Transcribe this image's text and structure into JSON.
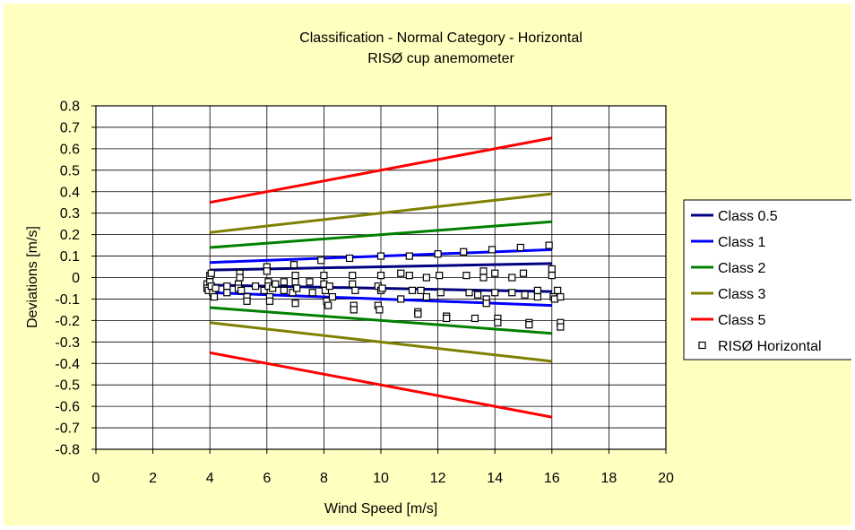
{
  "chart_data": {
    "type": "line",
    "title": "Classification - Normal Category - Horizontal",
    "subtitle": "RISØ cup anemometer",
    "xlabel": "Wind Speed [m/s]",
    "ylabel": "Deviations [m/s]",
    "xlim": [
      0,
      20
    ],
    "ylim": [
      -0.8,
      0.8
    ],
    "x_ticks": [
      0,
      2,
      4,
      6,
      8,
      10,
      12,
      14,
      16,
      18,
      20
    ],
    "y_ticks": [
      0.8,
      0.7,
      0.6,
      0.5,
      0.4,
      0.3,
      0.2,
      0.1,
      0,
      -0.1,
      -0.2,
      -0.3,
      -0.4,
      -0.5,
      -0.6,
      -0.7,
      -0.8
    ],
    "grid": true,
    "legend_position": "right",
    "series": [
      {
        "name": "Class 0.5",
        "color": "#000080",
        "lines": [
          [
            [
              4,
              0.035
            ],
            [
              16,
              0.065
            ]
          ],
          [
            [
              4,
              -0.035
            ],
            [
              16,
              -0.065
            ]
          ]
        ]
      },
      {
        "name": "Class 1",
        "color": "#0000ff",
        "lines": [
          [
            [
              4,
              0.07
            ],
            [
              16,
              0.13
            ]
          ],
          [
            [
              4,
              -0.07
            ],
            [
              16,
              -0.13
            ]
          ]
        ]
      },
      {
        "name": "Class 2",
        "color": "#008000",
        "lines": [
          [
            [
              4,
              0.14
            ],
            [
              16,
              0.26
            ]
          ],
          [
            [
              4,
              -0.14
            ],
            [
              16,
              -0.26
            ]
          ]
        ]
      },
      {
        "name": "Class 3",
        "color": "#808000",
        "lines": [
          [
            [
              4,
              0.21
            ],
            [
              16,
              0.39
            ]
          ],
          [
            [
              4,
              -0.21
            ],
            [
              16,
              -0.39
            ]
          ]
        ]
      },
      {
        "name": "Class 5",
        "color": "#ff0000",
        "lines": [
          [
            [
              4,
              0.35
            ],
            [
              16,
              0.65
            ]
          ],
          [
            [
              4,
              -0.35
            ],
            [
              16,
              -0.65
            ]
          ]
        ]
      }
    ],
    "scatter": {
      "name": "RISØ Horizontal",
      "color": "#000000",
      "points": [
        [
          3.9,
          -0.03
        ],
        [
          3.9,
          -0.05
        ],
        [
          3.95,
          -0.06
        ],
        [
          4.0,
          0.01
        ],
        [
          4.0,
          -0.02
        ],
        [
          4.05,
          -0.04
        ],
        [
          4.05,
          0.02
        ],
        [
          4.1,
          -0.07
        ],
        [
          4.15,
          -0.09
        ],
        [
          4.2,
          -0.05
        ],
        [
          4.6,
          -0.04
        ],
        [
          4.6,
          -0.07
        ],
        [
          5.0,
          -0.03
        ],
        [
          5.0,
          -0.05
        ],
        [
          5.05,
          0.02
        ],
        [
          5.05,
          0.0
        ],
        [
          5.1,
          -0.06
        ],
        [
          5.3,
          -0.09
        ],
        [
          5.3,
          -0.11
        ],
        [
          5.6,
          -0.04
        ],
        [
          5.9,
          -0.06
        ],
        [
          6.0,
          0.05
        ],
        [
          6.0,
          0.03
        ],
        [
          6.05,
          -0.02
        ],
        [
          6.05,
          -0.04
        ],
        [
          6.1,
          -0.09
        ],
        [
          6.1,
          -0.11
        ],
        [
          6.2,
          -0.05
        ],
        [
          6.3,
          -0.03
        ],
        [
          6.6,
          -0.06
        ],
        [
          6.6,
          -0.02
        ],
        [
          6.9,
          -0.07
        ],
        [
          6.95,
          0.06
        ],
        [
          7.0,
          0.01
        ],
        [
          7.0,
          -0.02
        ],
        [
          7.0,
          -0.12
        ],
        [
          7.05,
          -0.05
        ],
        [
          7.5,
          -0.02
        ],
        [
          7.6,
          -0.07
        ],
        [
          7.9,
          0.08
        ],
        [
          8.0,
          0.01
        ],
        [
          8.0,
          -0.03
        ],
        [
          8.05,
          -0.06
        ],
        [
          8.1,
          -0.11
        ],
        [
          8.15,
          -0.13
        ],
        [
          8.2,
          -0.04
        ],
        [
          8.3,
          -0.09
        ],
        [
          8.9,
          0.09
        ],
        [
          9.0,
          0.01
        ],
        [
          9.0,
          -0.03
        ],
        [
          9.05,
          -0.13
        ],
        [
          9.05,
          -0.15
        ],
        [
          9.1,
          -0.06
        ],
        [
          9.9,
          -0.04
        ],
        [
          9.9,
          -0.13
        ],
        [
          9.95,
          -0.15
        ],
        [
          10.0,
          0.1
        ],
        [
          10.0,
          0.01
        ],
        [
          10.0,
          -0.06
        ],
        [
          10.05,
          -0.05
        ],
        [
          10.7,
          0.02
        ],
        [
          10.7,
          -0.1
        ],
        [
          11.0,
          0.1
        ],
        [
          11.0,
          0.01
        ],
        [
          11.1,
          -0.06
        ],
        [
          11.3,
          -0.16
        ],
        [
          11.3,
          -0.17
        ],
        [
          11.4,
          -0.06
        ],
        [
          11.6,
          0.0
        ],
        [
          11.6,
          -0.09
        ],
        [
          12.0,
          0.11
        ],
        [
          12.05,
          0.01
        ],
        [
          12.1,
          -0.07
        ],
        [
          12.3,
          -0.18
        ],
        [
          12.3,
          -0.19
        ],
        [
          12.9,
          0.12
        ],
        [
          13.0,
          0.01
        ],
        [
          13.1,
          -0.07
        ],
        [
          13.3,
          -0.19
        ],
        [
          13.4,
          -0.08
        ],
        [
          13.6,
          0.0
        ],
        [
          13.6,
          0.03
        ],
        [
          13.7,
          -0.1
        ],
        [
          13.7,
          -0.12
        ],
        [
          13.9,
          0.13
        ],
        [
          14.0,
          0.02
        ],
        [
          14.0,
          -0.07
        ],
        [
          14.1,
          -0.19
        ],
        [
          14.1,
          -0.21
        ],
        [
          14.6,
          0.0
        ],
        [
          14.6,
          -0.07
        ],
        [
          14.9,
          0.14
        ],
        [
          15.0,
          0.02
        ],
        [
          15.05,
          -0.08
        ],
        [
          15.2,
          -0.21
        ],
        [
          15.2,
          -0.22
        ],
        [
          15.5,
          -0.06
        ],
        [
          15.5,
          -0.09
        ],
        [
          15.9,
          0.15
        ],
        [
          16.0,
          0.04
        ],
        [
          16.0,
          0.01
        ],
        [
          16.05,
          -0.09
        ],
        [
          16.1,
          -0.1
        ],
        [
          16.2,
          -0.06
        ],
        [
          16.3,
          -0.09
        ],
        [
          16.3,
          -0.21
        ],
        [
          16.3,
          -0.23
        ]
      ]
    }
  }
}
